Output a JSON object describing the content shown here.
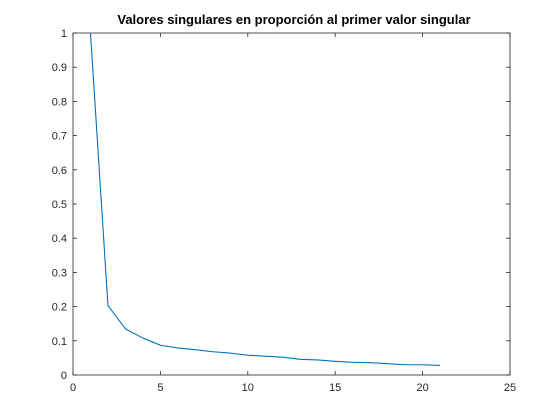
{
  "chart_data": {
    "type": "line",
    "title": "Valores singulares en proporción al primer valor singular",
    "xlabel": "",
    "ylabel": "",
    "xlim": [
      0,
      25
    ],
    "ylim": [
      0,
      1
    ],
    "xticks": [
      "0",
      "5",
      "10",
      "15",
      "20",
      "25"
    ],
    "yticks": [
      "0",
      "0.1",
      "0.2",
      "0.3",
      "0.4",
      "0.5",
      "0.6",
      "0.7",
      "0.8",
      "0.9",
      "1"
    ],
    "grid": false,
    "line_color": "#0072BD",
    "x": [
      1,
      2,
      3,
      4,
      5,
      6,
      7,
      8,
      9,
      10,
      11,
      12,
      13,
      14,
      15,
      16,
      17,
      18,
      19,
      20,
      21
    ],
    "series": [
      {
        "values": [
          1.0,
          0.203,
          0.135,
          0.108,
          0.087,
          0.079,
          0.074,
          0.068,
          0.064,
          0.058,
          0.055,
          0.052,
          0.046,
          0.044,
          0.04,
          0.037,
          0.036,
          0.033,
          0.03,
          0.03,
          0.028
        ]
      }
    ]
  }
}
